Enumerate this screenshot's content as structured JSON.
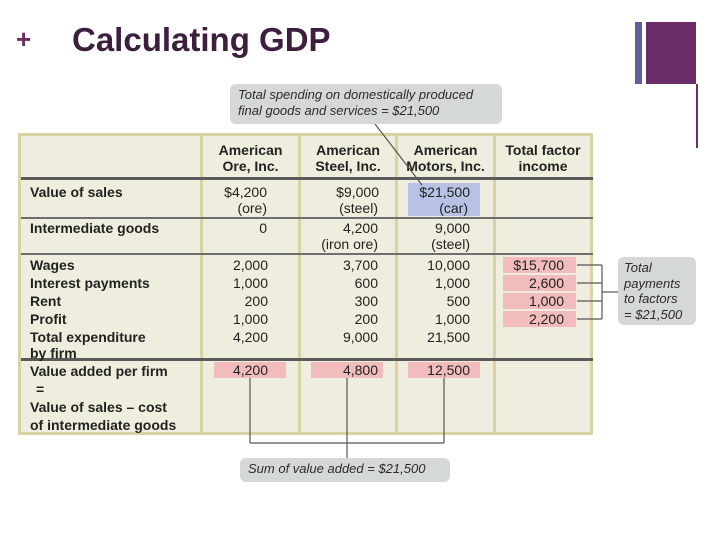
{
  "slide": {
    "plus": "+",
    "title": "Calculating GDP"
  },
  "callouts": {
    "top_line1": "Total spending on domestically produced",
    "top_line2": "final goods and services = $21,500",
    "right_line1": "Total",
    "right_line2": "payments",
    "right_line3": "to factors",
    "right_line4": "= $21,500",
    "bottom": "Sum of value added = $21,500"
  },
  "table": {
    "columns": [
      {
        "line1": "American",
        "line2": "Ore, Inc."
      },
      {
        "line1": "American",
        "line2": "Steel, Inc."
      },
      {
        "line1": "American",
        "line2": "Motors, Inc."
      },
      {
        "line1": "Total factor",
        "line2": "income"
      }
    ],
    "rows": {
      "sales_label": "Value of sales",
      "sales": [
        "$4,200",
        "$9,000",
        "$21,500"
      ],
      "sales_sub": [
        "(ore)",
        "(steel)",
        "(car)"
      ],
      "intermediate_label": "Intermediate goods",
      "intermediate": [
        "0",
        "4,200",
        "9,000"
      ],
      "intermediate_sub": [
        "",
        "(iron ore)",
        "(steel)"
      ],
      "wages_label": "Wages",
      "wages": [
        "2,000",
        "3,700",
        "10,000",
        "$15,700"
      ],
      "interest_label": "Interest payments",
      "interest": [
        "1,000",
        "600",
        "1,000",
        "2,600"
      ],
      "rent_label": "Rent",
      "rent": [
        "200",
        "300",
        "500",
        "1,000"
      ],
      "profit_label": "Profit",
      "profit": [
        "1,000",
        "200",
        "1,000",
        "2,200"
      ],
      "total_label_1": "Total expenditure",
      "total_label_2": "by firm",
      "total": [
        "4,200",
        "9,000",
        "21,500"
      ],
      "va_label_1": "Value added per firm",
      "va_label_2": "=",
      "va_label_3": "Value of sales – cost",
      "va_label_4": "of intermediate goods",
      "value_added": [
        "4,200",
        "4,800",
        "12,500"
      ]
    }
  },
  "colors": {
    "title": "#3b1f3d",
    "accent_purple": "#6a2d69",
    "accent_blue": "#5b5f9c",
    "table_bg": "#efeede",
    "highlight_pink": "#f2bcbc",
    "highlight_blue": "#b9c2e4"
  }
}
